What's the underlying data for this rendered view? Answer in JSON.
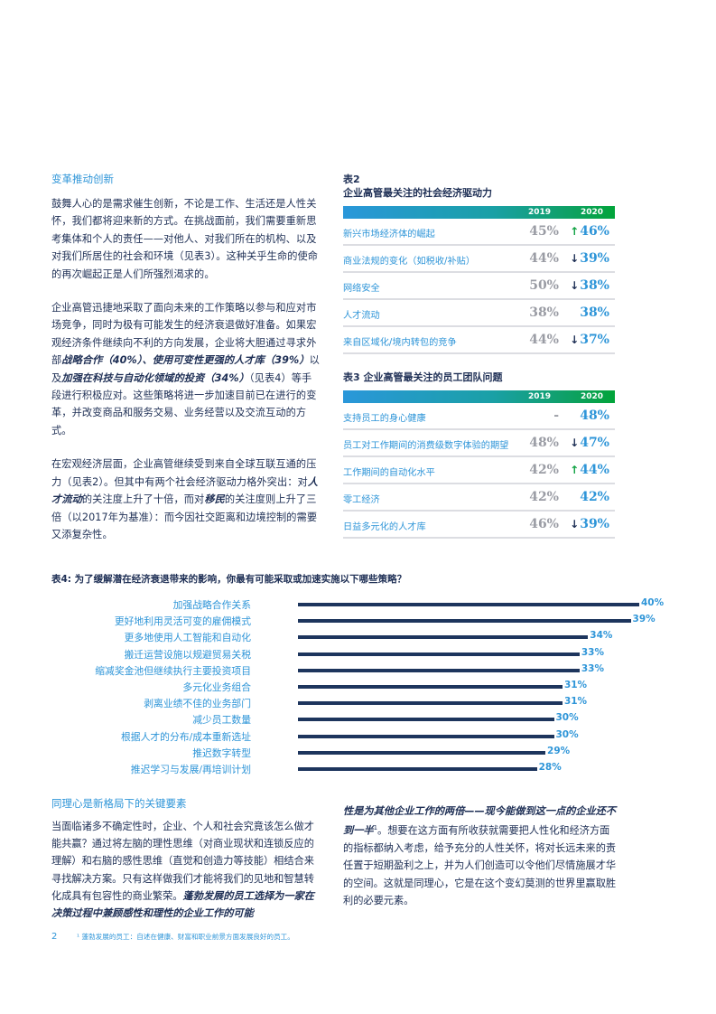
{
  "left_column": {
    "section_title": "变革推动创新",
    "para1": "鼓舞人心的是需求催生创新，不论是工作、生活还是人性关怀，我们都将迎来新的方式。在挑战面前，我们需要重新思考集体和个人的责任——对他人、对我们所在的机构、以及对我们所居住的社会和环境（见表3）。这种关乎生命的使命的再次崛起正是人们所强烈渴求的。",
    "para2": {
      "p1": "企业高管迅捷地采取了面向未来的工作策略以参与和应对市场竞争，同时为极有可能发生的经济衰退做好准备。如果宏观经济条件继续向不利的方向发展，企业将大胆通过寻求外部",
      "b1": "战略合作（40%）、使用可变性更强的人才库（39%）",
      "p2": "以及",
      "b2": "加强在科技与自动化领域的投资（34%）",
      "p3": "（见表4）等手段进行积极应对。这些策略将进一步加速目前已在进行的变革，并改变商品和服务交易、业务经营以及交流互动的方式。"
    },
    "para3": {
      "p1": "在宏观经济层面，企业高管继续受到来自全球互联互通的压力（见表2）。但其中有两个社会经济驱动力格外突出：对",
      "b1": "人才流动",
      "p2": "的关注度上升了十倍，而对",
      "b2": "移民",
      "p3": "的关注度则上升了三倍（以2017年为基准）：而今因社交距离和边境控制的需要又添复杂性。"
    }
  },
  "table2": {
    "label": "表2",
    "title": "企业高管最关注的社会经济驱动力",
    "col_2019": "2019",
    "col_2020": "2020",
    "rows": [
      {
        "label": "新兴市场经济体的崛起",
        "v2019": "45%",
        "v2020": "46%",
        "trend": "up"
      },
      {
        "label": "商业法规的变化（如税收/补贴）",
        "v2019": "44%",
        "v2020": "39%",
        "trend": "down"
      },
      {
        "label": "网络安全",
        "v2019": "50%",
        "v2020": "38%",
        "trend": "down"
      },
      {
        "label": "人才流动",
        "v2019": "38%",
        "v2020": "38%",
        "trend": "none"
      },
      {
        "label": "来自区域化/境内转包的竞争",
        "v2019": "44%",
        "v2020": "37%",
        "trend": "down"
      }
    ]
  },
  "table3": {
    "title": "表3 企业高管最关注的员工团队问题",
    "col_2019": "2019",
    "col_2020": "2020",
    "rows": [
      {
        "label": "支持员工的身心健康",
        "v2019": "-",
        "v2020": "48%",
        "trend": "none"
      },
      {
        "label": "员工对工作期间的消费级数字体验的期望",
        "v2019": "48%",
        "v2020": "47%",
        "trend": "down"
      },
      {
        "label": "工作期间的自动化水平",
        "v2019": "42%",
        "v2020": "44%",
        "trend": "up"
      },
      {
        "label": "零工经济",
        "v2019": "42%",
        "v2020": "42%",
        "trend": "none"
      },
      {
        "label": "日益多元化的人才库",
        "v2019": "46%",
        "v2020": "39%",
        "trend": "down"
      }
    ]
  },
  "chart_data": {
    "type": "bar",
    "orientation": "horizontal",
    "title": "表4: 为了缓解潜在经济衰退带来的影响，你最有可能采取或加速实施以下哪些策略？",
    "categories": [
      "加强战略合作关系",
      "更好地利用灵活可变的雇佣模式",
      "更多地使用人工智能和自动化",
      "搬迁运营设施以规避贸易关税",
      "缩减奖金池但继续执行主要投资项目",
      "多元化业务组合",
      "剥离业绩不佳的业务部门",
      "减少员工数量",
      "根据人才的分布/成本重新选址",
      "推迟数字转型",
      "推迟学习与发展/再培训计划"
    ],
    "values": [
      40,
      39,
      34,
      33,
      33,
      31,
      31,
      30,
      30,
      29,
      28
    ],
    "value_labels": [
      "40%",
      "39%",
      "34%",
      "33%",
      "33%",
      "31%",
      "31%",
      "30%",
      "30%",
      "29%",
      "28%"
    ],
    "bar_color": "#1d355d",
    "label_color": "#2e95d8",
    "xlabel": "",
    "ylabel": "",
    "grid": false
  },
  "bottom": {
    "section_title": "同理心是新格局下的关键要素",
    "left_p1": "当面临诸多不确定性时，企业、个人和社会究竟该怎么做才能共赢？通过将左脑的理性思维（对商业现状和连锁反应的理解）和右脑的感性思维（直觉和创造力等技能）相结合来寻找解决方案。只有这样做我们才能将我们的见地和智慧转化成具有包容性的商业繁荣。",
    "left_b1": "蓬勃发展的员工选择为一家在决策过程中兼顾感性和理性的企业工作的可能",
    "right_b1": "性是为其他企业工作的两倍——现今能做到这一点的企业还不到一半",
    "right_sup": "1",
    "right_p1": "。想要在这方面有所收获就需要把人性化和经济方面的指标都纳入考虑，给予充分的人性关怀，将对长远未来的责任置于短期盈利之上，并为人们创造可以令他们尽情施展才华的空间。这就是同理心，它是在这个变幻莫测的世界里赢取胜利的必要元素。"
  },
  "footer": {
    "page_number": "2",
    "footnote": "¹ 蓬勃发展的员工：自述在健康、财富和职业前景方面发展良好的员工。"
  },
  "icons": {
    "up": "↑",
    "down": "↓"
  },
  "colors": {
    "accent_blue": "#2e95d8",
    "navy": "#1d355d",
    "green_up": "#10a243",
    "gray_value": "#9a9ca4"
  }
}
